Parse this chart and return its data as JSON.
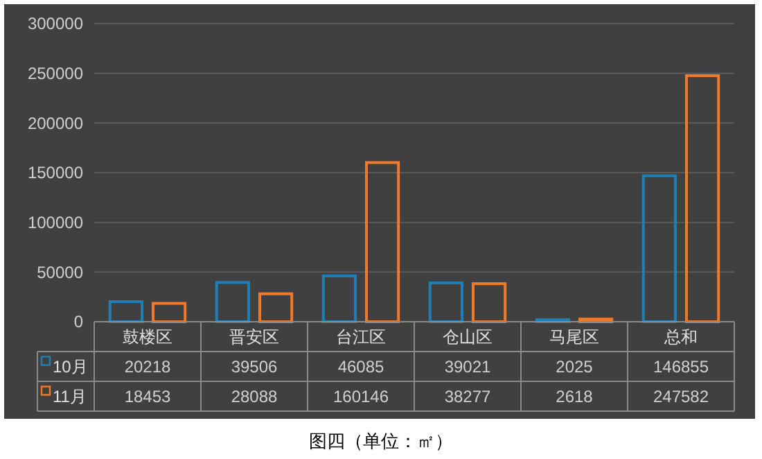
{
  "chart_data": {
    "type": "bar",
    "categories": [
      "鼓楼区",
      "晋安区",
      "台江区",
      "仓山区",
      "马尾区",
      "总和"
    ],
    "series": [
      {
        "name": "10月",
        "color": "#1f7fb4",
        "values": [
          20218,
          39506,
          46085,
          39021,
          2025,
          146855
        ]
      },
      {
        "name": "11月",
        "color": "#f07a2a",
        "values": [
          18453,
          28088,
          160146,
          38277,
          2618,
          247582
        ]
      }
    ],
    "ylim": [
      0,
      300000
    ],
    "yticks": [
      0,
      50000,
      100000,
      150000,
      200000,
      250000,
      300000
    ],
    "grid": "y",
    "legend": "bottom",
    "data_labels": true,
    "annotations": [
      "图四（单位：㎡）"
    ]
  }
}
